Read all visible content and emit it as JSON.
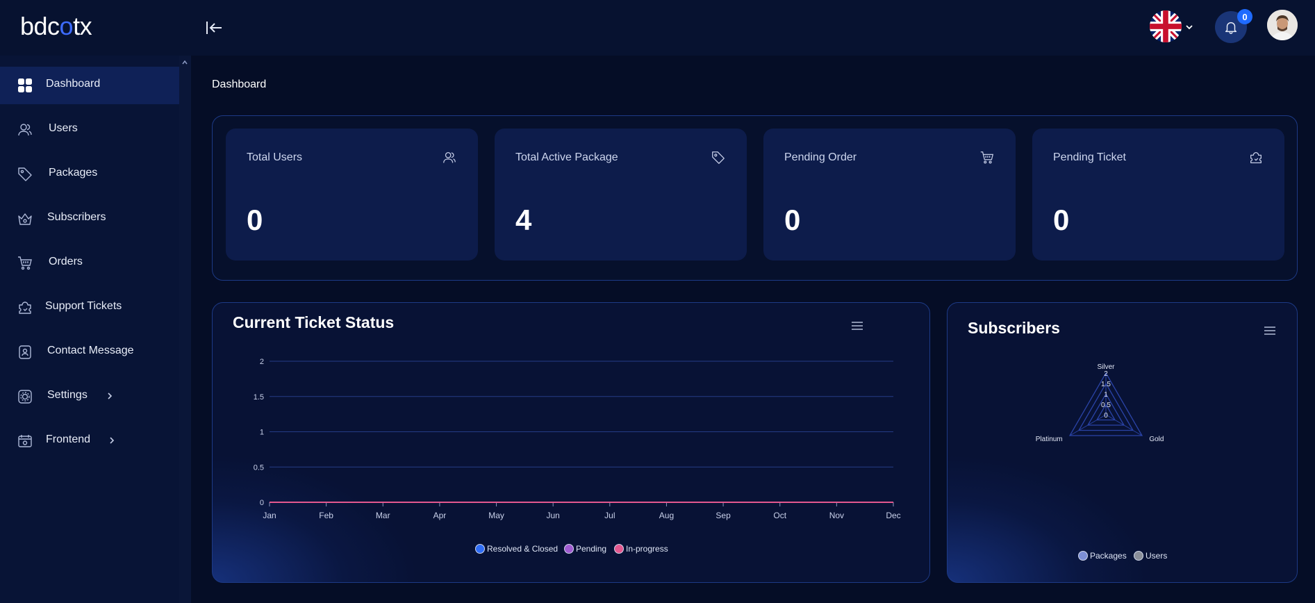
{
  "brand": {
    "logo_prefix": "bdc",
    "logo_o": "o",
    "logo_suffix": "tx"
  },
  "header": {
    "notification_count": "0",
    "language": "English (UK)"
  },
  "sidebar": {
    "items": [
      {
        "label": "Dashboard",
        "icon": "grid-icon",
        "active": true
      },
      {
        "label": "Users",
        "icon": "users-icon"
      },
      {
        "label": "Packages",
        "icon": "tag-icon"
      },
      {
        "label": "Subscribers",
        "icon": "crown-icon"
      },
      {
        "label": "Orders",
        "icon": "cart-icon"
      },
      {
        "label": "Support Tickets",
        "icon": "ticket-icon"
      },
      {
        "label": "Contact Message",
        "icon": "contact-icon"
      },
      {
        "label": "Settings",
        "icon": "settings-icon",
        "has_children": true
      },
      {
        "label": "Frontend",
        "icon": "frontend-icon",
        "has_children": true
      }
    ]
  },
  "page": {
    "title": "Dashboard"
  },
  "stats": [
    {
      "title": "Total Users",
      "value": "0",
      "icon": "users-icon"
    },
    {
      "title": "Total Active Package",
      "value": "4",
      "icon": "tag-icon"
    },
    {
      "title": "Pending Order",
      "value": "0",
      "icon": "cart-icon"
    },
    {
      "title": "Pending Ticket",
      "value": "0",
      "icon": "ticket-icon"
    }
  ],
  "colors": {
    "accent": "#1f6bff",
    "background": "#050d26",
    "card": "#0d1c4b"
  },
  "chart_data": [
    {
      "type": "line",
      "title": "Current Ticket Status",
      "categories": [
        "Jan",
        "Feb",
        "Mar",
        "Apr",
        "May",
        "Jun",
        "Jul",
        "Aug",
        "Sep",
        "Oct",
        "Nov",
        "Dec"
      ],
      "y_ticks": [
        "0",
        "0.5",
        "1",
        "1.5",
        "2"
      ],
      "ylim": [
        0,
        2
      ],
      "grid": true,
      "legend_position": "bottom",
      "series": [
        {
          "name": "Resolved & Closed",
          "color": "#2f6df6",
          "values": [
            0,
            0,
            0,
            0,
            0,
            0,
            0,
            0,
            0,
            0,
            0,
            0
          ]
        },
        {
          "name": "Pending",
          "color": "#a05bd0",
          "values": [
            0,
            0,
            0,
            0,
            0,
            0,
            0,
            0,
            0,
            0,
            0,
            0
          ]
        },
        {
          "name": "In-progress",
          "color": "#e4588f",
          "values": [
            0,
            0,
            0,
            0,
            0,
            0,
            0,
            0,
            0,
            0,
            0,
            0
          ]
        }
      ]
    },
    {
      "type": "radar",
      "title": "Subscribers",
      "categories": [
        "Silver",
        "Gold",
        "Platinum"
      ],
      "r_ticks": [
        "0",
        "0.5",
        "1",
        "1.5",
        "2"
      ],
      "rlim": [
        0,
        2
      ],
      "legend_position": "bottom",
      "series": [
        {
          "name": "Packages",
          "color": "#7d8fd6",
          "values": [
            0,
            0,
            0
          ]
        },
        {
          "name": "Users",
          "color": "#8a8f99",
          "values": [
            0,
            0,
            0
          ]
        }
      ]
    }
  ]
}
